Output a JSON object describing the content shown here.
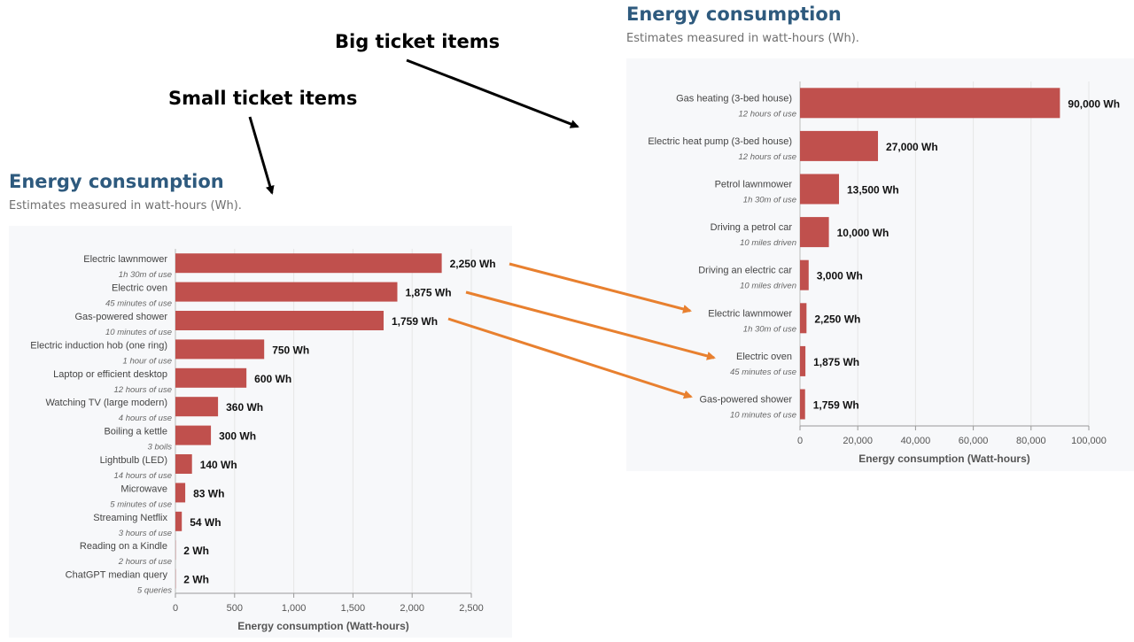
{
  "annotations": {
    "big_label": "Big ticket items",
    "small_label": "Small ticket items"
  },
  "colors": {
    "bar": "#c0504d",
    "arrow_black": "#000000",
    "arrow_orange": "#e8802f",
    "title": "#2e5a7e"
  },
  "chart_data": [
    {
      "id": "small",
      "type": "bar",
      "orientation": "horizontal",
      "title": "Energy consumption",
      "subtitle": "Estimates measured in watt-hours (Wh).",
      "xlabel": "Energy consumption (Watt-hours)",
      "xlim": [
        0,
        2500
      ],
      "xticks": [
        0,
        500,
        1000,
        1500,
        2000,
        2500
      ],
      "xtick_labels": [
        "0",
        "500",
        "1,000",
        "1,500",
        "2,000",
        "2,500"
      ],
      "categories": [
        "Electric lawnmower",
        "Electric oven",
        "Gas-powered shower",
        "Electric induction hob (one ring)",
        "Laptop or efficient desktop",
        "Watching TV (large modern)",
        "Boiling a kettle",
        "Lightbulb (LED)",
        "Microwave",
        "Streaming Netflix",
        "Reading on a Kindle",
        "ChatGPT median query"
      ],
      "sublabels": [
        "1h 30m of use",
        "45 minutes of use",
        "10 minutes of use",
        "1 hour of use",
        "12 hours of use",
        "4 hours of use",
        "3 boils",
        "14 hours of use",
        "5 minutes of use",
        "3 hours of use",
        "2 hours of use",
        "5 queries"
      ],
      "values": [
        2250,
        1875,
        1759,
        750,
        600,
        360,
        300,
        140,
        83,
        54,
        2,
        2
      ],
      "value_labels": [
        "2,250 Wh",
        "1,875 Wh",
        "1,759 Wh",
        "750 Wh",
        "600 Wh",
        "360 Wh",
        "300 Wh",
        "140 Wh",
        "83 Wh",
        "54 Wh",
        "2 Wh",
        "2 Wh"
      ]
    },
    {
      "id": "big",
      "type": "bar",
      "orientation": "horizontal",
      "title": "Energy consumption",
      "subtitle": "Estimates measured in watt-hours (Wh).",
      "xlabel": "Energy consumption (Watt-hours)",
      "xlim": [
        0,
        100000
      ],
      "xticks": [
        0,
        20000,
        40000,
        60000,
        80000,
        100000
      ],
      "xtick_labels": [
        "0",
        "20,000",
        "40,000",
        "60,000",
        "80,000",
        "100,000"
      ],
      "categories": [
        "Gas heating (3-bed house)",
        "Electric heat pump (3-bed house)",
        "Petrol lawnmower",
        "Driving a petrol car",
        "Driving an electric car",
        "Electric lawnmower",
        "Electric oven",
        "Gas-powered shower"
      ],
      "sublabels": [
        "12 hours of use",
        "12 hours of use",
        "1h 30m of use",
        "10 miles driven",
        "10 miles driven",
        "1h 30m of use",
        "45 minutes of use",
        "10 minutes of use"
      ],
      "values": [
        90000,
        27000,
        13500,
        10000,
        3000,
        2250,
        1875,
        1759
      ],
      "value_labels": [
        "90,000 Wh",
        "27,000 Wh",
        "13,500 Wh",
        "10,000 Wh",
        "3,000 Wh",
        "2,250 Wh",
        "1,875 Wh",
        "1,759 Wh"
      ]
    }
  ]
}
